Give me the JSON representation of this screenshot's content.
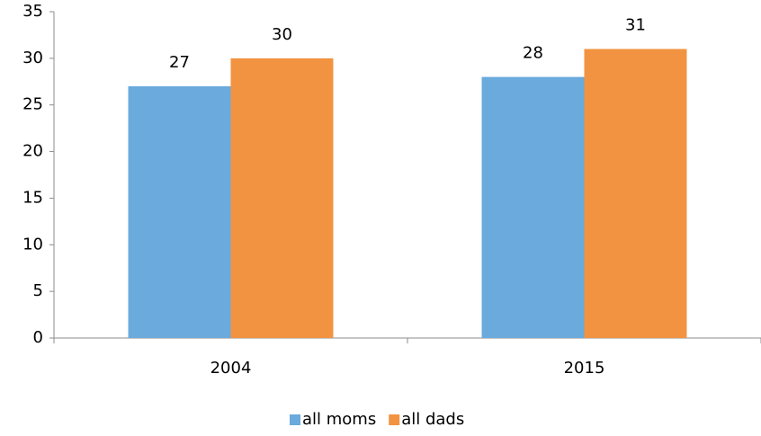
{
  "chart_data": {
    "type": "bar",
    "categories": [
      "2004",
      "2015"
    ],
    "series": [
      {
        "name": "all moms",
        "color": "#6aaadc",
        "values": [
          27,
          28
        ]
      },
      {
        "name": "all dads",
        "color": "#f29341",
        "values": [
          30,
          31
        ]
      }
    ],
    "ylim": [
      0,
      35
    ],
    "yticks": [
      0,
      5,
      10,
      15,
      20,
      25,
      30,
      35
    ],
    "grid": false,
    "legend": "bottom"
  }
}
